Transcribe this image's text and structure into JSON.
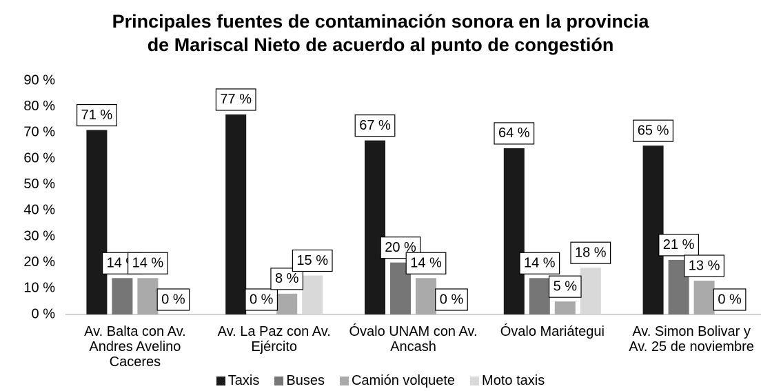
{
  "chart_data": {
    "type": "bar",
    "title": "Principales fuentes de contaminación sonora en la provincia de Mariscal Nieto de acuerdo al punto de congestión",
    "categories": [
      "Av. Balta con Av. Andres Avelino Caceres",
      "Av. La Paz con Av. Ejército",
      "Óvalo UNAM con Av. Ancash",
      "Óvalo Mariátegui",
      "Av. Simon Bolivar y Av. 25 de noviembre"
    ],
    "series": [
      {
        "name": "Taxis",
        "color": "#1a1a1a",
        "values": [
          71,
          77,
          67,
          64,
          65
        ],
        "value_labels": [
          "71 %",
          "77 %",
          "67 %",
          "64 %",
          "65 %"
        ]
      },
      {
        "name": "Buses",
        "color": "#767676",
        "values": [
          14,
          0,
          20,
          14,
          21
        ],
        "value_labels": [
          "14 %",
          "0 %",
          "20 %",
          "14 %",
          "21 %"
        ]
      },
      {
        "name": "Camión volquete",
        "color": "#aaaaaa",
        "values": [
          14,
          8,
          14,
          5,
          13
        ],
        "value_labels": [
          "14 %",
          "8 %",
          "14 %",
          "5 %",
          "13 %"
        ]
      },
      {
        "name": "Moto taxis",
        "color": "#d9d9d9",
        "values": [
          0,
          15,
          0,
          18,
          0
        ],
        "value_labels": [
          "0 %",
          "15 %",
          "0 %",
          "18 %",
          "0 %"
        ]
      }
    ],
    "ylim": [
      0,
      90
    ],
    "yticks": [
      {
        "value": 0,
        "label": "0 %"
      },
      {
        "value": 10,
        "label": "10 %"
      },
      {
        "value": 20,
        "label": "20 %"
      },
      {
        "value": 30,
        "label": "30 %"
      },
      {
        "value": 40,
        "label": "40 %"
      },
      {
        "value": 50,
        "label": "50 %"
      },
      {
        "value": 60,
        "label": "60 %"
      },
      {
        "value": 70,
        "label": "70 %"
      },
      {
        "value": 80,
        "label": "80 %"
      },
      {
        "value": 90,
        "label": "90 %"
      }
    ],
    "legend": "bottom"
  }
}
